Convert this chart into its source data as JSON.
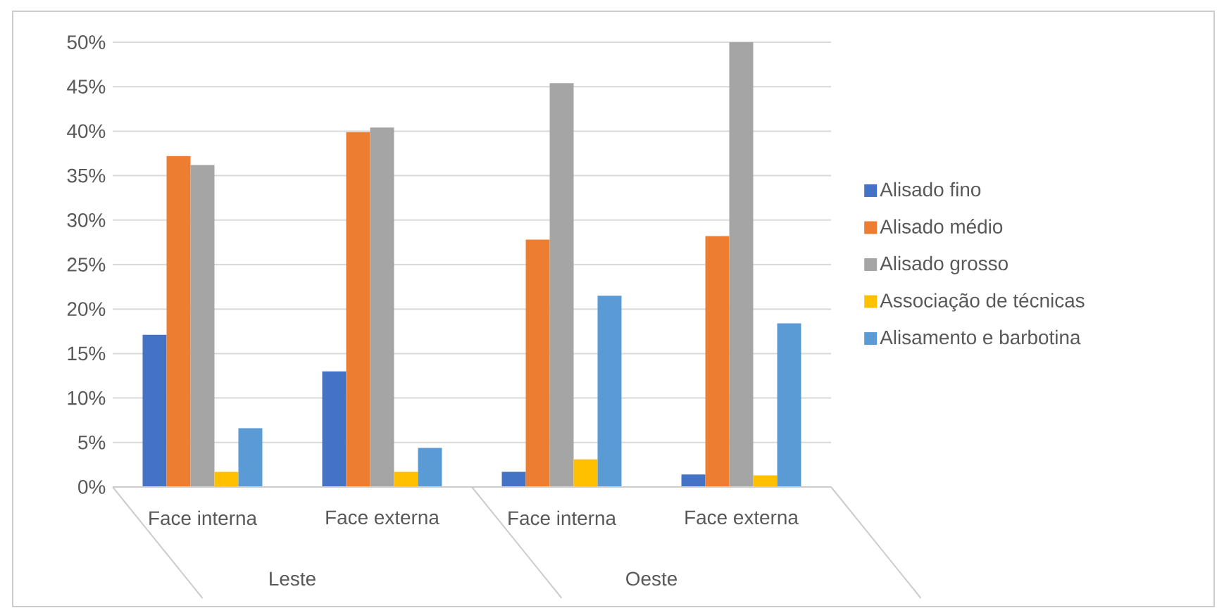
{
  "chart_data": {
    "type": "bar",
    "categories": [
      "Face interna",
      "Face externa",
      "Face interna",
      "Face externa"
    ],
    "annotations": [
      "Leste",
      "Oeste"
    ],
    "series": [
      {
        "name": "Alisado fino",
        "color": "#4472c4",
        "values": [
          17.1,
          13.0,
          1.7,
          1.4
        ]
      },
      {
        "name": "Alisado médio",
        "color": "#ed7d31",
        "values": [
          37.2,
          39.9,
          27.8,
          28.2
        ]
      },
      {
        "name": "Alisado grosso",
        "color": "#a5a5a5",
        "values": [
          36.2,
          40.4,
          45.4,
          50.0
        ]
      },
      {
        "name": "Associação de técnicas",
        "color": "#ffc000",
        "values": [
          1.7,
          1.7,
          3.1,
          1.3
        ]
      },
      {
        "name": "Alisamento e barbotina",
        "color": "#5b9bd5",
        "values": [
          6.6,
          4.4,
          21.5,
          18.4
        ]
      }
    ],
    "ylim": [
      0,
      50
    ],
    "yticks": [
      {
        "value": 0,
        "label": "0%"
      },
      {
        "value": 5,
        "label": "5%"
      },
      {
        "value": 10,
        "label": "10%"
      },
      {
        "value": 15,
        "label": "15%"
      },
      {
        "value": 20,
        "label": "20%"
      },
      {
        "value": 25,
        "label": "25%"
      },
      {
        "value": 30,
        "label": "30%"
      },
      {
        "value": 35,
        "label": "35%"
      },
      {
        "value": 40,
        "label": "40%"
      },
      {
        "value": 45,
        "label": "45%"
      },
      {
        "value": 50,
        "label": "50%"
      }
    ],
    "grid": "y",
    "legend": "right"
  }
}
